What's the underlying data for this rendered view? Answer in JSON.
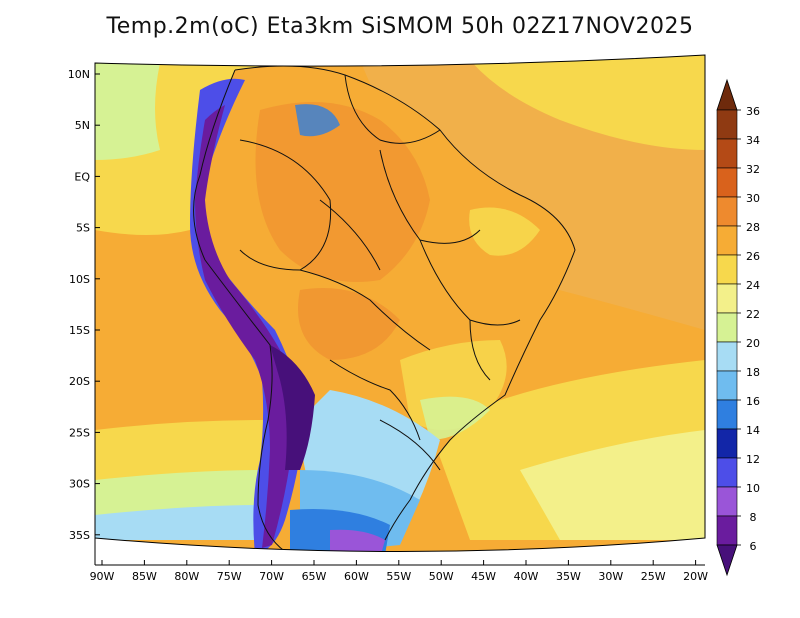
{
  "title": "Temp.2m(oC) Eta3km SiSMOM 50h 02Z17NOV2025",
  "map": {
    "lat_labels": [
      "10N",
      "5N",
      "EQ",
      "5S",
      "10S",
      "15S",
      "20S",
      "25S",
      "30S",
      "35S"
    ],
    "lon_labels": [
      "90W",
      "85W",
      "80W",
      "75W",
      "70W",
      "65W",
      "60W",
      "55W",
      "50W",
      "45W",
      "40W",
      "35W",
      "30W",
      "25W",
      "20W"
    ],
    "lat_range": [
      10,
      -35
    ],
    "lon_range": [
      -90,
      -20
    ]
  },
  "colorbar": {
    "labels": [
      "36",
      "34",
      "32",
      "30",
      "28",
      "26",
      "24",
      "22",
      "20",
      "18",
      "16",
      "14",
      "12",
      "10",
      "8",
      "6"
    ],
    "colors": [
      "#6e2a0c",
      "#8f3a12",
      "#b44a16",
      "#d9621c",
      "#ee8a2e",
      "#f6ac35",
      "#f7d84c",
      "#f3f08a",
      "#d6f294",
      "#a7dcf4",
      "#6fbcef",
      "#2f7fe0",
      "#1226a8",
      "#4d4ee8",
      "#9a55d8",
      "#6a1c9e",
      "#47107a"
    ]
  }
}
